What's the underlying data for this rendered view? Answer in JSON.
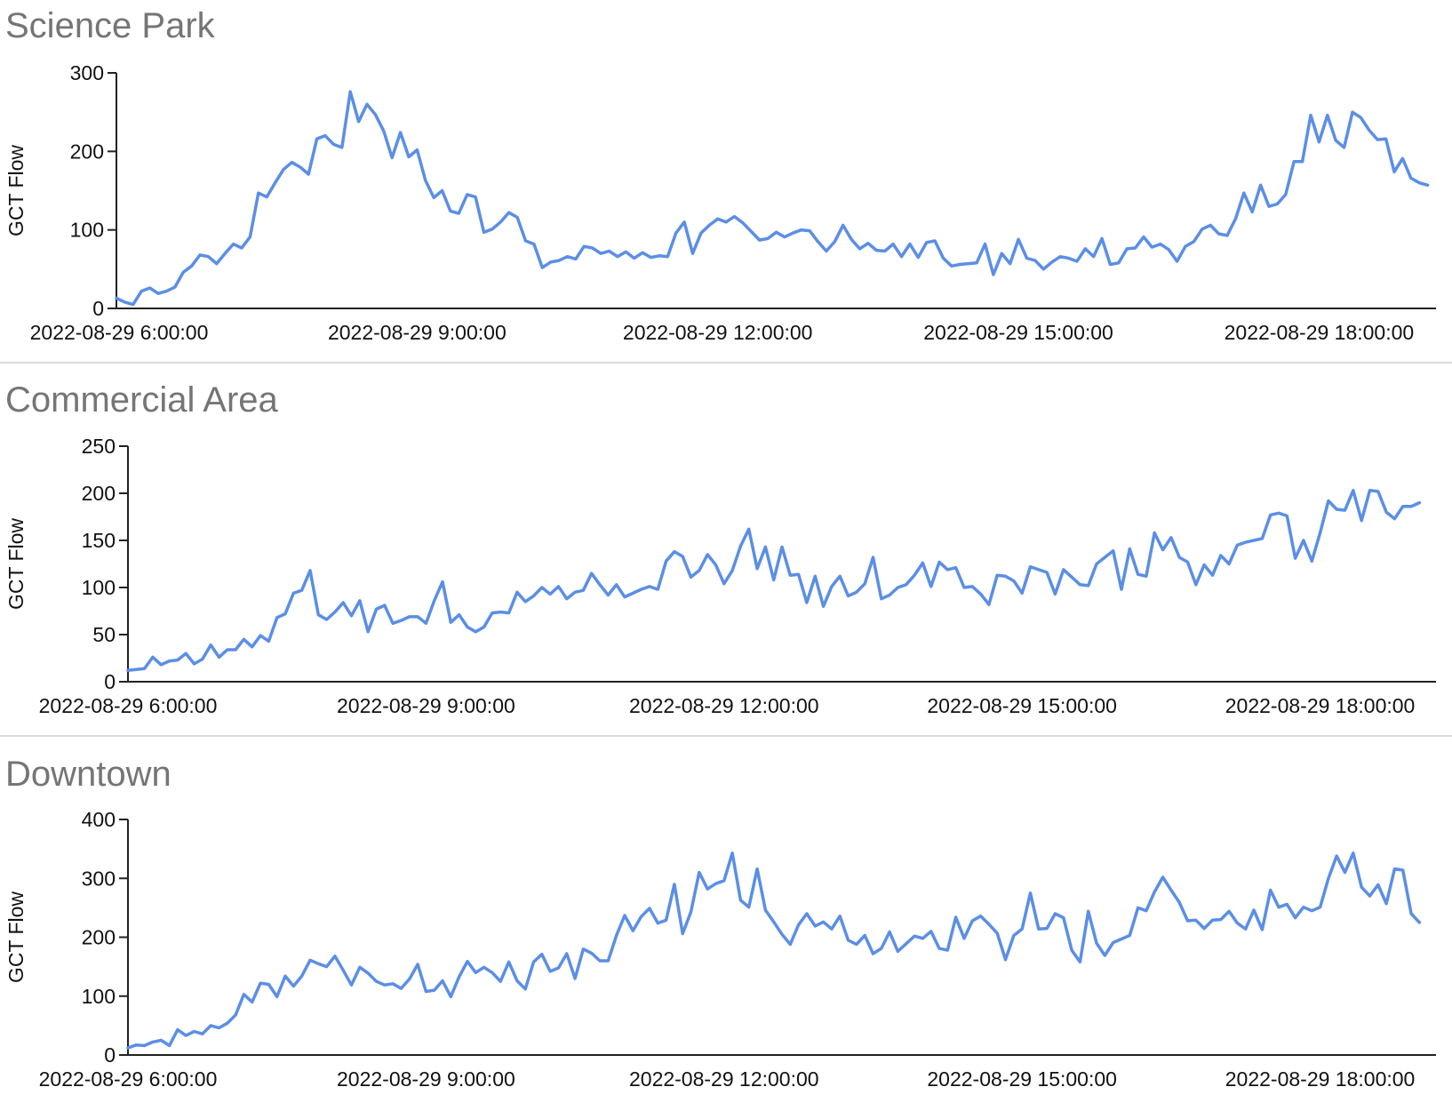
{
  "chart_data": [
    {
      "type": "line",
      "title": "Science Park",
      "ylabel": "GCT Flow",
      "ylim": [
        0,
        300
      ],
      "yticks": [
        "0",
        "100",
        "200",
        "300"
      ],
      "xlim": [
        "2022-08-29 6:00:00",
        "2022-08-29 19:10:00"
      ],
      "xticks": [
        "2022-08-29 6:00:00",
        "2022-08-29 9:00:00",
        "2022-08-29 12:00:00",
        "2022-08-29 15:00:00",
        "2022-08-29 18:00:00"
      ],
      "color": "#5b8ee6",
      "grid": false,
      "series": [
        {
          "x_start": "2022-08-29 6:00:00",
          "x_step": "5 min",
          "values": [
            13,
            8,
            5,
            22,
            26,
            19,
            22,
            27,
            46,
            54,
            68,
            66,
            57,
            70,
            82,
            77,
            91,
            147,
            142,
            160,
            177,
            186,
            180,
            171,
            216,
            220,
            209,
            205,
            276,
            238,
            260,
            247,
            226,
            192,
            224,
            193,
            202,
            163,
            141,
            150,
            124,
            121,
            145,
            142,
            97,
            101,
            110,
            122,
            116,
            86,
            82,
            52,
            59,
            61,
            66,
            63,
            79,
            77,
            70,
            73,
            66,
            72,
            64,
            71,
            65,
            67,
            66,
            96,
            110,
            70,
            96,
            106,
            114,
            110,
            117,
            109,
            98,
            87,
            89,
            97,
            91,
            96,
            100,
            99,
            85,
            73,
            85,
            106,
            88,
            76,
            83,
            74,
            73,
            82,
            66,
            82,
            65,
            84,
            86,
            64,
            54,
            56,
            57,
            58,
            82,
            43,
            70,
            57,
            88,
            64,
            61,
            50,
            59,
            66,
            64,
            60,
            76,
            66,
            89,
            56,
            58,
            76,
            77,
            91,
            78,
            82,
            75,
            60,
            79,
            85,
            101,
            106,
            95,
            93,
            114,
            147,
            123,
            157,
            130,
            133,
            145,
            187,
            187,
            246,
            212,
            246,
            214,
            205,
            250,
            243,
            227,
            215,
            216,
            174,
            191,
            166,
            160,
            157
          ]
        }
      ]
    },
    {
      "type": "line",
      "title": "Commercial Area",
      "ylabel": "GCT Flow",
      "ylim": [
        0,
        250
      ],
      "yticks": [
        "0",
        "50",
        "100",
        "150",
        "200",
        "250"
      ],
      "xlim": [
        "2022-08-29 6:00:00",
        "2022-08-29 19:10:00"
      ],
      "xticks": [
        "2022-08-29 6:00:00",
        "2022-08-29 9:00:00",
        "2022-08-29 12:00:00",
        "2022-08-29 15:00:00",
        "2022-08-29 18:00:00"
      ],
      "color": "#5b8ee6",
      "grid": false,
      "series": [
        {
          "x_start": "2022-08-29 6:00:00",
          "x_step": "5 min",
          "values": [
            12,
            13,
            14,
            26,
            18,
            22,
            23,
            30,
            19,
            24,
            39,
            26,
            34,
            34,
            45,
            37,
            49,
            43,
            68,
            72,
            94,
            97,
            118,
            71,
            66,
            74,
            84,
            70,
            86,
            53,
            77,
            81,
            62,
            65,
            69,
            69,
            62,
            86,
            106,
            63,
            71,
            58,
            53,
            58,
            73,
            74,
            73,
            95,
            85,
            91,
            100,
            93,
            101,
            88,
            95,
            97,
            115,
            103,
            92,
            103,
            90,
            94,
            98,
            101,
            98,
            128,
            138,
            133,
            111,
            118,
            135,
            124,
            104,
            118,
            144,
            162,
            120,
            143,
            108,
            143,
            113,
            114,
            84,
            112,
            80,
            101,
            112,
            91,
            95,
            104,
            132,
            88,
            92,
            100,
            103,
            113,
            126,
            101,
            127,
            119,
            121,
            100,
            101,
            93,
            82,
            113,
            112,
            107,
            94,
            122,
            119,
            116,
            93,
            119,
            111,
            103,
            102,
            125,
            132,
            139,
            98,
            141,
            114,
            112,
            158,
            140,
            153,
            132,
            127,
            103,
            124,
            113,
            134,
            125,
            145,
            148,
            150,
            152,
            177,
            179,
            176,
            131,
            150,
            128,
            158,
            192,
            183,
            182,
            203,
            171,
            203,
            202,
            180,
            173,
            186,
            186,
            190
          ]
        }
      ]
    },
    {
      "type": "line",
      "title": "Downtown",
      "ylabel": "GCT Flow",
      "ylim": [
        0,
        400
      ],
      "yticks": [
        "0",
        "100",
        "200",
        "300",
        "400"
      ],
      "xlim": [
        "2022-08-29 6:00:00",
        "2022-08-29 19:10:00"
      ],
      "xticks": [
        "2022-08-29 6:00:00",
        "2022-08-29 9:00:00",
        "2022-08-29 12:00:00",
        "2022-08-29 15:00:00",
        "2022-08-29 18:00:00"
      ],
      "color": "#5b8ee6",
      "grid": false,
      "series": [
        {
          "x_start": "2022-08-29 6:00:00",
          "x_step": "5 min",
          "values": [
            12,
            17,
            16,
            22,
            25,
            16,
            43,
            33,
            40,
            36,
            50,
            46,
            54,
            68,
            103,
            90,
            122,
            120,
            99,
            134,
            117,
            134,
            161,
            155,
            150,
            168,
            144,
            119,
            149,
            139,
            125,
            119,
            121,
            113,
            129,
            154,
            108,
            110,
            126,
            99,
            133,
            159,
            140,
            149,
            140,
            125,
            158,
            126,
            112,
            158,
            171,
            142,
            148,
            172,
            130,
            180,
            173,
            160,
            160,
            203,
            237,
            211,
            235,
            249,
            224,
            229,
            290,
            206,
            243,
            310,
            282,
            291,
            296,
            343,
            263,
            251,
            316,
            246,
            226,
            205,
            188,
            221,
            240,
            219,
            226,
            214,
            236,
            195,
            188,
            203,
            172,
            181,
            209,
            176,
            189,
            202,
            198,
            210,
            181,
            178,
            234,
            198,
            228,
            236,
            222,
            207,
            162,
            203,
            214,
            275,
            214,
            215,
            240,
            233,
            178,
            158,
            244,
            190,
            169,
            191,
            197,
            203,
            250,
            245,
            277,
            302,
            280,
            259,
            228,
            229,
            215,
            229,
            230,
            244,
            224,
            214,
            246,
            213,
            280,
            251,
            256,
            233,
            251,
            245,
            251,
            300,
            338,
            310,
            343,
            285,
            270,
            289,
            257,
            316,
            314,
            240,
            225
          ]
        }
      ]
    }
  ]
}
